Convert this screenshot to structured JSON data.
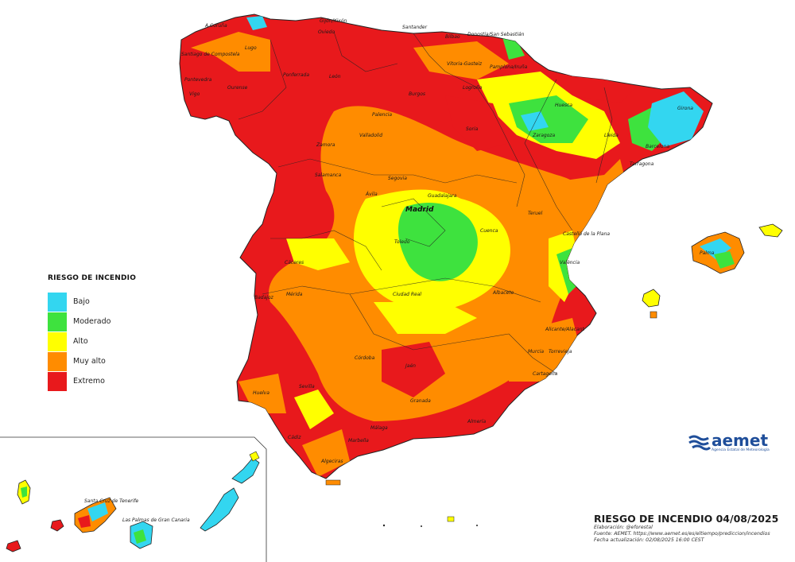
{
  "map": {
    "title": "RIESGO DE INCENDIO 04/08/2025",
    "elaboration": "Elaboración: @eforestal",
    "source": "Fuente: AEMET. https://www.aemet.es/es/eltiempo/prediccion/incendios",
    "updated": "Fecha actualización: 02/08/2025 16:00 CEST"
  },
  "legend": {
    "title": "RIESGO DE INCENDIO",
    "levels": [
      {
        "label": "Bajo",
        "color": "#33d6f0"
      },
      {
        "label": "Moderado",
        "color": "#3ee23e"
      },
      {
        "label": "Alto",
        "color": "#ffff00"
      },
      {
        "label": "Muy alto",
        "color": "#ff8c00"
      },
      {
        "label": "Extremo",
        "color": "#e8191c"
      }
    ]
  },
  "logo": {
    "name": "aemet",
    "subtitle": "Agencia Estatal de Meteorología",
    "color": "#1f4e9a"
  },
  "cities": {
    "a_coruna": "A Coruña",
    "gijon": "Gijón/Xixón",
    "santander": "Santander",
    "bilbao": "Bilbao",
    "donostia": "Donostia/San Sebastián",
    "oviedo": "Oviedo",
    "lugo": "Lugo",
    "santiago": "Santiago de Compostela",
    "pontevedra": "Pontevedra",
    "vigo": "Vigo",
    "ourense": "Ourense",
    "ponferrada": "Ponferrada",
    "leon": "León",
    "burgos": "Burgos",
    "vitoria": "Vitoria-Gasteiz",
    "logrono": "Logroño",
    "pamplona": "Pamplona/Iruña",
    "huesca": "Huesca",
    "girona": "Girona",
    "lleida": "Lleida",
    "barcelona": "Barcelona",
    "zaragoza": "Zaragoza",
    "tarragona": "Tarragona",
    "palencia": "Palencia",
    "valladolid": "Valladolid",
    "soria": "Soria",
    "zamora": "Zamora",
    "salamanca": "Salamanca",
    "segovia": "Segovia",
    "avila": "Ávila",
    "guadalajara": "Guadalajara",
    "madrid": "Madrid",
    "teruel": "Teruel",
    "castellon": "Castelló de la Plana",
    "cuenca": "Cuenca",
    "toledo": "Toledo",
    "caceres": "Cáceres",
    "valencia": "València",
    "palma": "Palma",
    "ciudad_real": "Ciudad Real",
    "albacete": "Albacete",
    "merida": "Mérida",
    "badajoz": "Badajoz",
    "alicante": "Alicante/Alacant",
    "murcia": "Murcia",
    "torrevieja": "Torrevieja",
    "cartagena": "Cartagena",
    "cordoba": "Córdoba",
    "jaen": "Jaén",
    "huelva": "Huelva",
    "sevilla": "Sevilla",
    "granada": "Granada",
    "almeria": "Almería",
    "malaga": "Málaga",
    "marbella": "Marbella",
    "algeciras": "Algeciras",
    "cadiz": "Cádiz",
    "santa_cruz": "Santa Cruz de Tenerife",
    "las_palmas": "Las Palmas de Gran Canaria"
  }
}
